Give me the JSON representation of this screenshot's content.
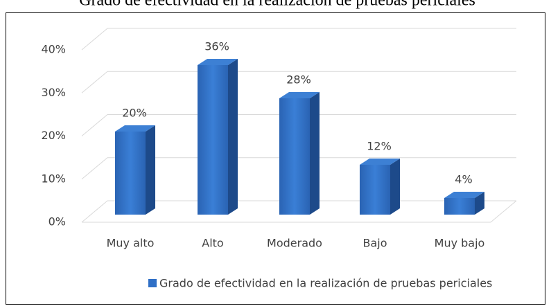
{
  "chart_data": {
    "type": "bar3d",
    "title": "Grado de efectividad en la realización de pruebas periciales",
    "categories": [
      "Muy alto",
      "Alto",
      "Moderado",
      "Bajo",
      "Muy bajo"
    ],
    "series": [
      {
        "name": "Grado de efectividad en la realización de pruebas periciales",
        "color": "#2f6fc6",
        "values": [
          20,
          36,
          28,
          12,
          4
        ],
        "value_labels": [
          "20%",
          "36%",
          "28%",
          "12%",
          "4%"
        ]
      }
    ],
    "ylim": [
      0,
      40
    ],
    "yticks": [
      {
        "value": 0,
        "label": "0%"
      },
      {
        "value": 10,
        "label": "10%"
      },
      {
        "value": 20,
        "label": "20%"
      },
      {
        "value": 30,
        "label": "30%"
      },
      {
        "value": 40,
        "label": "40%"
      }
    ],
    "grid": true,
    "legend": "bottom"
  }
}
